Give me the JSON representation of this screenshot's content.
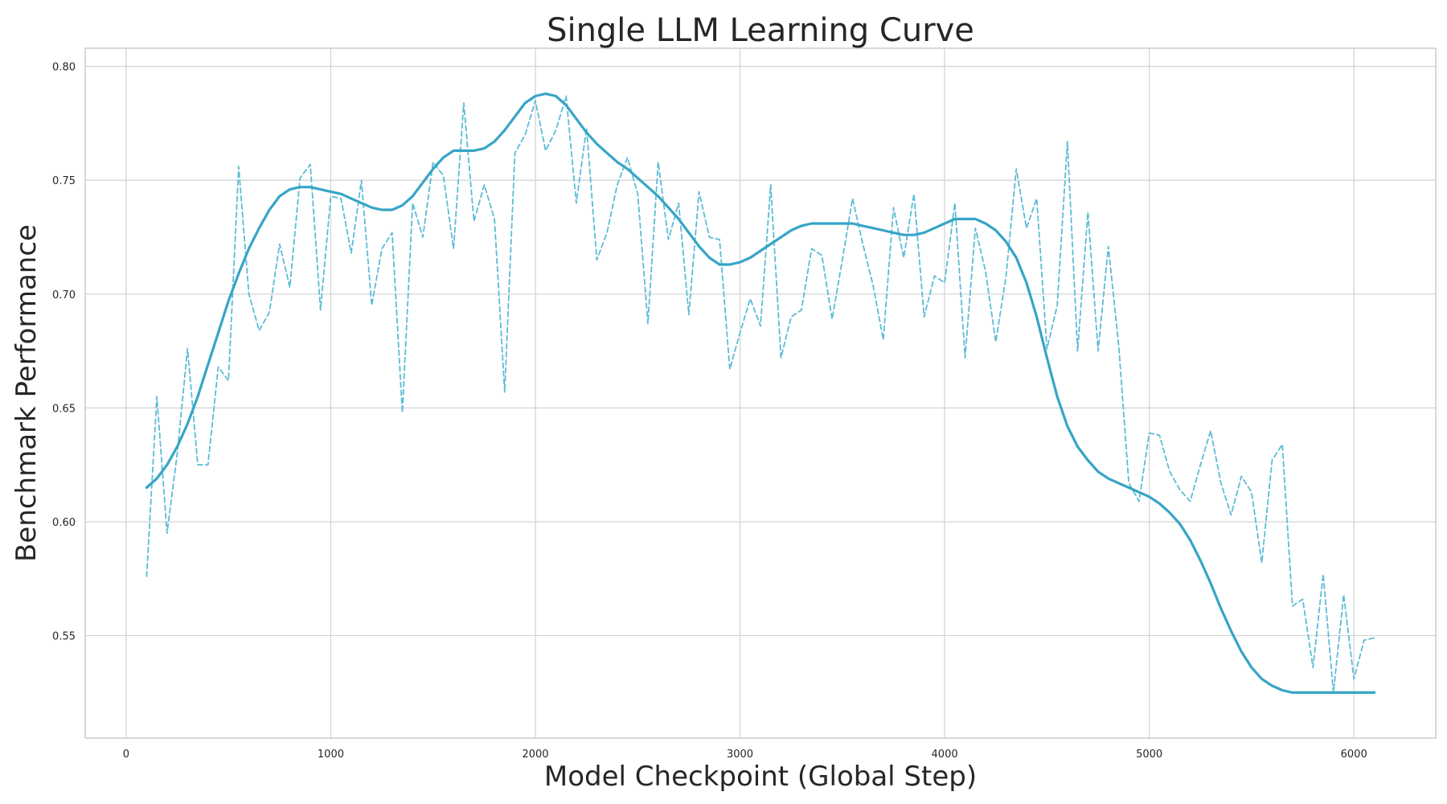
{
  "chart_data": {
    "type": "line",
    "title": "Single LLM Learning Curve",
    "xlabel": "Model Checkpoint (Global Step)",
    "ylabel": "Benchmark Performance",
    "xlim": [
      -200,
      6400
    ],
    "ylim": [
      0.505,
      0.808
    ],
    "xticks": [
      0,
      1000,
      2000,
      3000,
      4000,
      5000,
      6000
    ],
    "yticks": [
      0.55,
      0.6,
      0.65,
      0.7,
      0.75,
      0.8
    ],
    "xtick_labels": [
      "0",
      "1000",
      "2000",
      "3000",
      "4000",
      "5000",
      "6000"
    ],
    "ytick_labels": [
      "0.55",
      "0.60",
      "0.65",
      "0.70",
      "0.75",
      "0.80"
    ],
    "grid": true,
    "colors": {
      "raw": "#5bbcd6",
      "smoothed": "#36a5c6"
    },
    "series": [
      {
        "style": "dashed",
        "x": [
          100,
          150,
          200,
          250,
          300,
          350,
          400,
          450,
          500,
          550,
          600,
          650,
          700,
          750,
          800,
          850,
          900,
          950,
          1000,
          1050,
          1100,
          1150,
          1200,
          1250,
          1300,
          1350,
          1400,
          1450,
          1500,
          1550,
          1600,
          1650,
          1700,
          1750,
          1800,
          1850,
          1900,
          1950,
          2000,
          2050,
          2100,
          2150,
          2200,
          2250,
          2300,
          2350,
          2400,
          2450,
          2500,
          2550,
          2600,
          2650,
          2700,
          2750,
          2800,
          2850,
          2900,
          2950,
          3000,
          3050,
          3100,
          3150,
          3200,
          3250,
          3300,
          3350,
          3400,
          3450,
          3500,
          3550,
          3600,
          3650,
          3700,
          3750,
          3800,
          3850,
          3900,
          3950,
          4000,
          4050,
          4100,
          4150,
          4200,
          4250,
          4300,
          4350,
          4400,
          4450,
          4500,
          4550,
          4600,
          4650,
          4700,
          4750,
          4800,
          4850,
          4900,
          4950,
          5000,
          5050,
          5100,
          5150,
          5200,
          5250,
          5300,
          5350,
          5400,
          5450,
          5500,
          5550,
          5600,
          5650,
          5700,
          5750,
          5800,
          5850,
          5900,
          5950,
          6000,
          6050,
          6100
        ],
        "y": [
          0.576,
          0.655,
          0.595,
          0.63,
          0.676,
          0.625,
          0.625,
          0.668,
          0.662,
          0.756,
          0.7,
          0.684,
          0.692,
          0.722,
          0.703,
          0.751,
          0.757,
          0.693,
          0.743,
          0.742,
          0.718,
          0.75,
          0.695,
          0.72,
          0.727,
          0.648,
          0.74,
          0.725,
          0.758,
          0.752,
          0.72,
          0.784,
          0.732,
          0.748,
          0.733,
          0.657,
          0.762,
          0.77,
          0.785,
          0.763,
          0.772,
          0.787,
          0.74,
          0.773,
          0.715,
          0.727,
          0.748,
          0.76,
          0.744,
          0.687,
          0.758,
          0.724,
          0.74,
          0.691,
          0.745,
          0.725,
          0.724,
          0.667,
          0.683,
          0.698,
          0.686,
          0.748,
          0.672,
          0.69,
          0.693,
          0.72,
          0.717,
          0.689,
          0.715,
          0.742,
          0.722,
          0.704,
          0.68,
          0.738,
          0.716,
          0.744,
          0.69,
          0.708,
          0.705,
          0.74,
          0.672,
          0.729,
          0.71,
          0.679,
          0.708,
          0.755,
          0.729,
          0.742,
          0.676,
          0.695,
          0.767,
          0.675,
          0.736,
          0.675,
          0.721,
          0.678,
          0.617,
          0.609,
          0.639,
          0.638,
          0.622,
          0.614,
          0.609,
          0.625,
          0.64,
          0.617,
          0.603,
          0.62,
          0.613,
          0.582,
          0.627,
          0.634,
          0.563,
          0.566,
          0.536,
          0.577,
          0.525,
          0.568,
          0.531,
          0.548,
          0.549
        ]
      },
      {
        "style": "solid",
        "x": [
          100,
          150,
          200,
          250,
          300,
          350,
          400,
          450,
          500,
          550,
          600,
          650,
          700,
          750,
          800,
          850,
          900,
          950,
          1000,
          1050,
          1100,
          1150,
          1200,
          1250,
          1300,
          1350,
          1400,
          1450,
          1500,
          1550,
          1600,
          1650,
          1700,
          1750,
          1800,
          1850,
          1900,
          1950,
          2000,
          2050,
          2100,
          2150,
          2200,
          2250,
          2300,
          2350,
          2400,
          2450,
          2500,
          2550,
          2600,
          2650,
          2700,
          2750,
          2800,
          2850,
          2900,
          2950,
          3000,
          3050,
          3100,
          3150,
          3200,
          3250,
          3300,
          3350,
          3400,
          3450,
          3500,
          3550,
          3600,
          3650,
          3700,
          3750,
          3800,
          3850,
          3900,
          3950,
          4000,
          4050,
          4100,
          4150,
          4200,
          4250,
          4300,
          4350,
          4400,
          4450,
          4500,
          4550,
          4600,
          4650,
          4700,
          4750,
          4800,
          4850,
          4900,
          4950,
          5000,
          5050,
          5100,
          5150,
          5200,
          5250,
          5300,
          5350,
          5400,
          5450,
          5500,
          5550,
          5600,
          5650,
          5700,
          5750,
          5800,
          5850,
          5900,
          5950,
          6000,
          6050,
          6100
        ],
        "y": [
          0.615,
          0.619,
          0.625,
          0.633,
          0.643,
          0.655,
          0.669,
          0.683,
          0.697,
          0.709,
          0.72,
          0.729,
          0.737,
          0.743,
          0.746,
          0.747,
          0.747,
          0.746,
          0.745,
          0.744,
          0.742,
          0.74,
          0.738,
          0.737,
          0.737,
          0.739,
          0.743,
          0.749,
          0.755,
          0.76,
          0.763,
          0.763,
          0.763,
          0.764,
          0.767,
          0.772,
          0.778,
          0.784,
          0.787,
          0.788,
          0.787,
          0.783,
          0.777,
          0.771,
          0.766,
          0.762,
          0.758,
          0.755,
          0.751,
          0.747,
          0.743,
          0.738,
          0.733,
          0.727,
          0.721,
          0.716,
          0.713,
          0.713,
          0.714,
          0.716,
          0.719,
          0.722,
          0.725,
          0.728,
          0.73,
          0.731,
          0.731,
          0.731,
          0.731,
          0.731,
          0.73,
          0.729,
          0.728,
          0.727,
          0.726,
          0.726,
          0.727,
          0.729,
          0.731,
          0.733,
          0.733,
          0.733,
          0.731,
          0.728,
          0.723,
          0.716,
          0.705,
          0.69,
          0.672,
          0.655,
          0.642,
          0.633,
          0.627,
          0.622,
          0.619,
          0.617,
          0.615,
          0.613,
          0.611,
          0.608,
          0.604,
          0.599,
          0.592,
          0.583,
          0.573,
          0.562,
          0.552,
          0.543,
          0.536,
          0.531,
          0.528,
          0.526,
          0.525,
          0.525,
          0.525,
          0.525,
          0.525,
          0.525,
          0.525,
          0.525,
          0.525
        ]
      }
    ]
  }
}
